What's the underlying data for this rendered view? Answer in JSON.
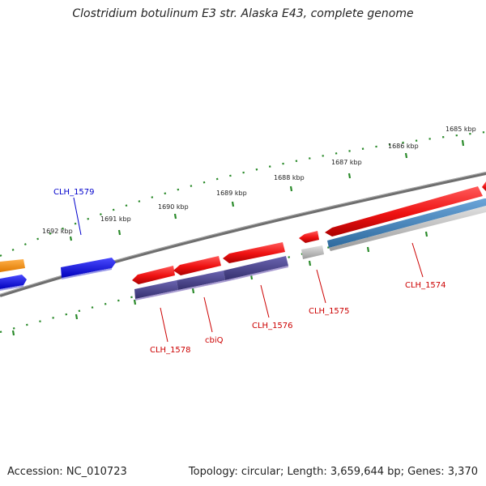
{
  "title": "Clostridium botulinum E3 str. Alaska E43, complete genome",
  "footer": {
    "accession": "Accession: NC_010723",
    "summary": "Topology: circular; Length: 3,659,644 bp; Genes: 3,370"
  },
  "colors": {
    "backbone": "#777777",
    "tick": "#2a8a2a",
    "cds_forward": "#ee1111",
    "cds_reverse_purple": "#4a4490",
    "cds_blue": "#1a1aee",
    "orange": "#ff8c00",
    "steel": "#3f7fb8",
    "grey": "#bdbdbd",
    "label_red": "#cc0000",
    "label_blue": "#0000cc"
  },
  "ticks": [
    {
      "label": "1692 kbp"
    },
    {
      "label": "1691 kbp"
    },
    {
      "label": "1690 kbp"
    },
    {
      "label": "1689 kbp"
    },
    {
      "label": "1688 kbp"
    },
    {
      "label": "1687 kbp"
    },
    {
      "label": "1686 kbp"
    },
    {
      "label": "1685 kbp"
    }
  ],
  "gene_labels": [
    {
      "name": "CLH_1579",
      "color": "#0000cc"
    },
    {
      "name": "CLH_1578",
      "color": "#cc0000"
    },
    {
      "name": "cbiQ",
      "color": "#cc0000"
    },
    {
      "name": "CLH_1576",
      "color": "#cc0000"
    },
    {
      "name": "CLH_1575",
      "color": "#cc0000"
    },
    {
      "name": "CLH_1574",
      "color": "#cc0000"
    }
  ]
}
